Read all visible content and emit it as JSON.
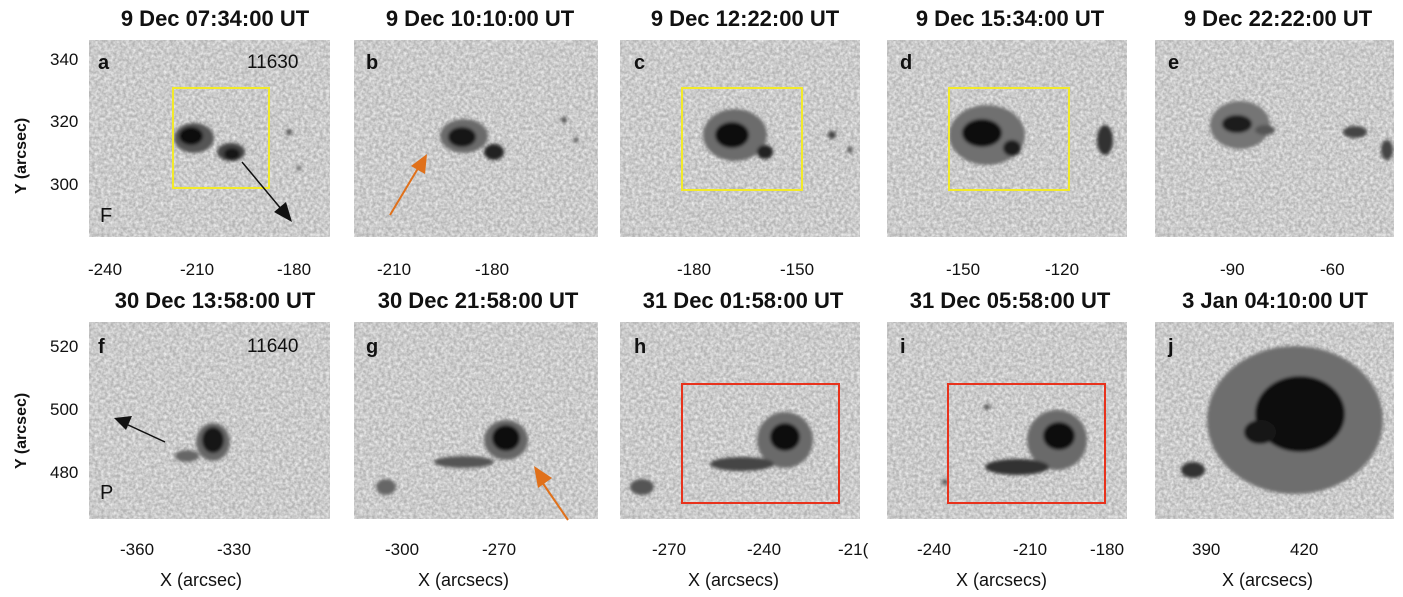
{
  "panels": [
    {
      "letter": "a",
      "title": "9 Dec 07:34:00 UT",
      "ar": "11630",
      "corner": "F"
    },
    {
      "letter": "b",
      "title": "9 Dec 10:10:00 UT"
    },
    {
      "letter": "c",
      "title": "9 Dec 12:22:00 UT"
    },
    {
      "letter": "d",
      "title": "9 Dec 15:34:00 UT"
    },
    {
      "letter": "e",
      "title": "9 Dec 22:22:00 UT"
    },
    {
      "letter": "f",
      "title": "30 Dec 13:58:00 UT",
      "ar": "11640",
      "corner": "P"
    },
    {
      "letter": "g",
      "title": "30 Dec 21:58:00 UT"
    },
    {
      "letter": "h",
      "title": "31 Dec 01:58:00 UT"
    },
    {
      "letter": "i",
      "title": "31 Dec 05:58:00 UT"
    },
    {
      "letter": "j",
      "title": "3 Jan 04:10:00 UT"
    }
  ],
  "top_y_ticks": [
    "340",
    "320",
    "300"
  ],
  "bottom_y_ticks": [
    "520",
    "500",
    "480"
  ],
  "top_x_ticks": [
    [
      "-240",
      "-210",
      "-180"
    ],
    [
      "-210",
      "-180"
    ],
    [
      "-180",
      "-150"
    ],
    [
      "-150",
      "-120"
    ],
    [
      "-90",
      "-60"
    ]
  ],
  "bottom_x_ticks": [
    [
      "-360",
      "-330"
    ],
    [
      "-300",
      "-270"
    ],
    [
      "-270",
      "-240",
      "-21("
    ],
    [
      "-240",
      "-210",
      "-180"
    ],
    [
      "390",
      "420"
    ]
  ],
  "y_label": "Y (arcsec)",
  "x_labels": [
    "X (arcsec)",
    "X (arcsecs)",
    "X (arcsecs)",
    "X (arcsecs)",
    "X (arcsecs)"
  ],
  "colors": {
    "yellow_box": "#f2ea2a",
    "red_box": "#e8321c",
    "orange_arrow": "#e0701a",
    "black_arrow": "#111111"
  }
}
